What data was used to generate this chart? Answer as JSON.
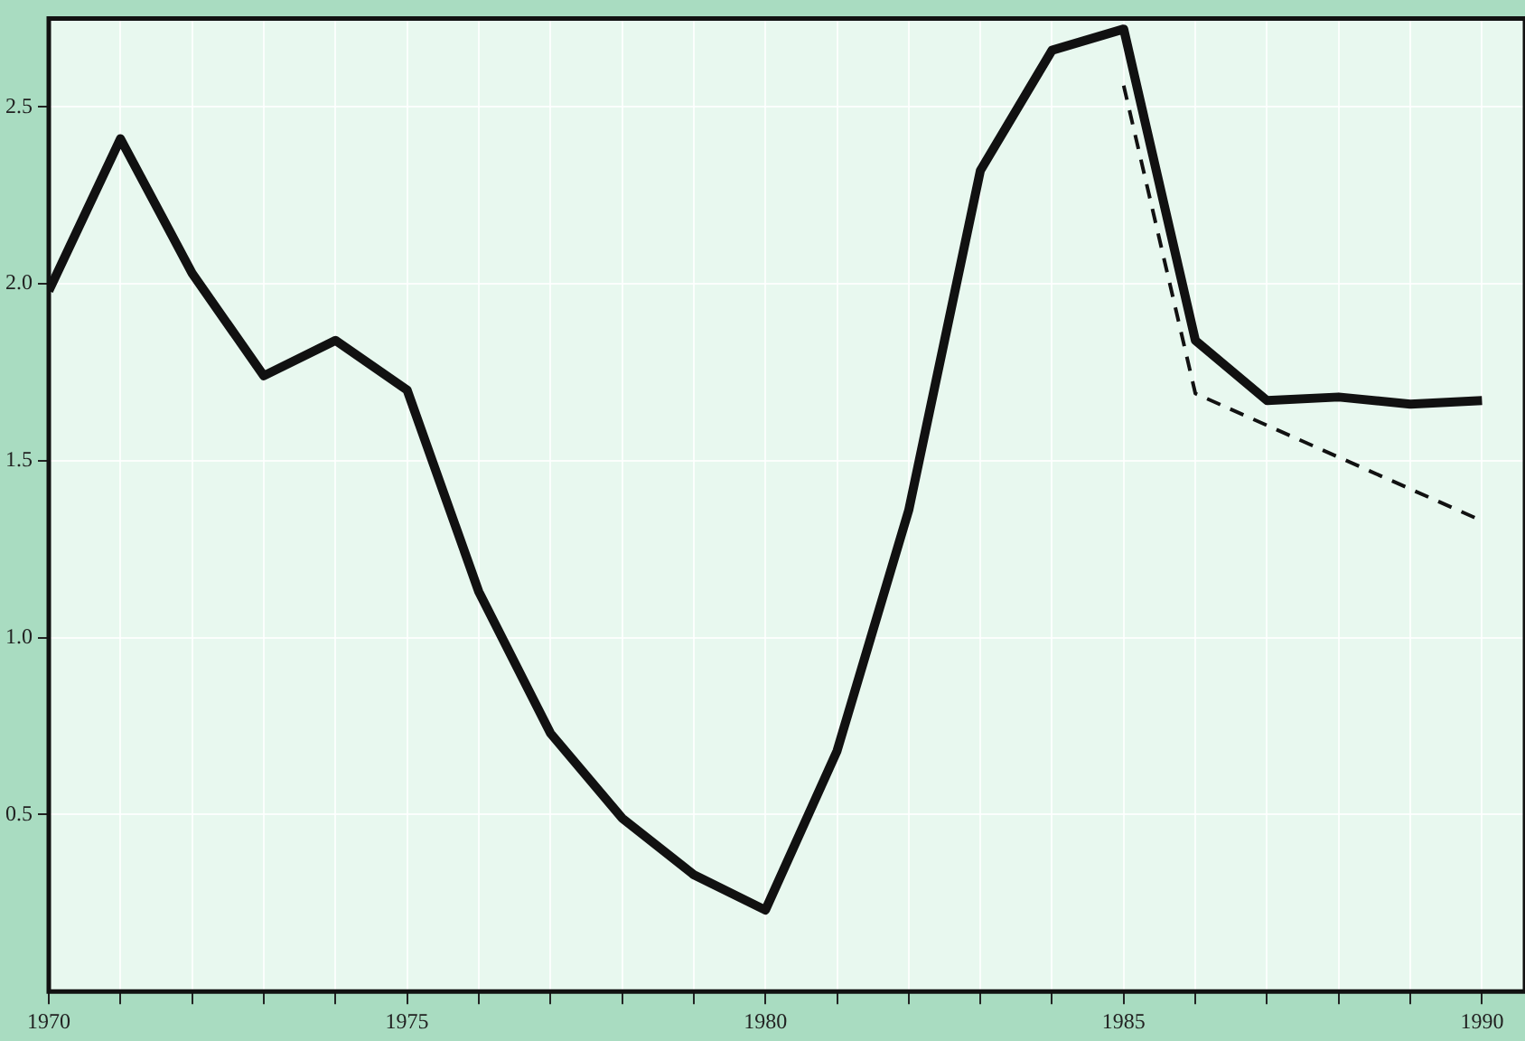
{
  "chart_data": {
    "type": "line",
    "line_style": "solid",
    "grid": true,
    "series": [
      {
        "color": "#111111",
        "x": [
          1970,
          1971,
          1972,
          1973,
          1974,
          1975,
          1976,
          1977,
          1978,
          1979,
          1980,
          1981,
          1982,
          1983,
          1984,
          1985,
          1986,
          1987,
          1988,
          1989,
          1990
        ],
        "values": [
          1.98,
          2.41,
          2.03,
          1.74,
          1.84,
          1.7,
          1.13,
          0.73,
          0.49,
          0.33,
          0.23,
          0.68,
          1.36,
          2.32,
          2.66,
          2.72,
          1.84,
          1.67,
          1.68,
          1.66,
          1.67
        ]
      },
      {
        "color": "#111111",
        "line_style": "dashed",
        "x": [
          1985,
          1986,
          1990
        ],
        "values": [
          2.56,
          1.69,
          1.33
        ]
      }
    ],
    "xlim": [
      1970,
      1990.6
    ],
    "xticks": [
      1970,
      {
        "value": 1971,
        "label": null
      },
      {
        "value": 1972,
        "label": null
      },
      {
        "value": 1973,
        "label": null
      },
      {
        "value": 1974,
        "label": null
      },
      1975,
      {
        "value": 1976,
        "label": null
      },
      {
        "value": 1977,
        "label": null
      },
      {
        "value": 1978,
        "label": null
      },
      {
        "value": 1979,
        "label": null
      },
      1980,
      {
        "value": 1981,
        "label": null
      },
      {
        "value": 1982,
        "label": null
      },
      {
        "value": 1983,
        "label": null
      },
      {
        "value": 1984,
        "label": null
      },
      1985,
      {
        "value": 1986,
        "label": null
      },
      {
        "value": 1987,
        "label": null
      },
      {
        "value": 1988,
        "label": null
      },
      {
        "value": 1989,
        "label": null
      },
      1990
    ],
    "ylim": [
      0,
      2.75
    ],
    "yticks": [
      {
        "value": 0.5,
        "label": "0.5"
      },
      {
        "value": 1,
        "label": "1.0"
      },
      {
        "value": 1.5,
        "label": "1.5"
      },
      {
        "value": 2,
        "label": "2.0"
      },
      {
        "value": 2.5,
        "label": "2.5"
      }
    ]
  }
}
